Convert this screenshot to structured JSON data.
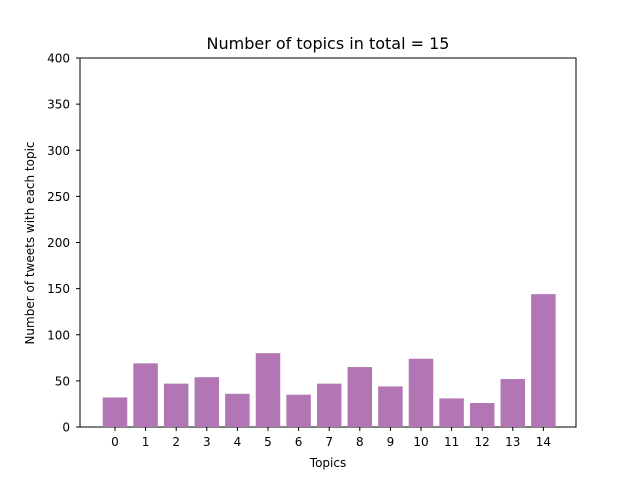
{
  "chart_data": {
    "type": "bar",
    "title": "Number of topics in total = 15",
    "xlabel": "Topics",
    "ylabel": "Number of tweets with each topic",
    "categories": [
      "0",
      "1",
      "2",
      "3",
      "4",
      "5",
      "6",
      "7",
      "8",
      "9",
      "10",
      "11",
      "12",
      "13",
      "14"
    ],
    "values": [
      32,
      69,
      47,
      54,
      36,
      80,
      35,
      47,
      65,
      44,
      74,
      31,
      26,
      52,
      144
    ],
    "ylim": [
      0,
      400
    ],
    "yticks": [
      0,
      50,
      100,
      150,
      200,
      250,
      300,
      350,
      400
    ],
    "grid": false,
    "bar_color": "#b276b4"
  }
}
